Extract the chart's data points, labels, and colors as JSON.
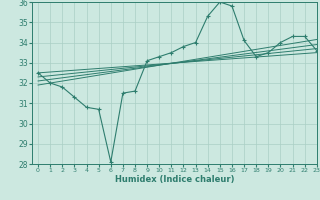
{
  "xlabel": "Humidex (Indice chaleur)",
  "x_data": [
    0,
    1,
    2,
    3,
    4,
    5,
    6,
    7,
    8,
    9,
    10,
    11,
    12,
    13,
    14,
    15,
    16,
    17,
    18,
    19,
    20,
    21,
    22,
    23
  ],
  "y_main": [
    32.5,
    32.0,
    31.8,
    31.3,
    30.8,
    30.7,
    28.1,
    31.5,
    31.6,
    33.1,
    33.3,
    33.5,
    33.8,
    34.0,
    35.3,
    36.0,
    35.8,
    34.1,
    33.3,
    33.5,
    34.0,
    34.3,
    34.3,
    33.6
  ],
  "trend_lines": [
    [
      [
        0,
        23
      ],
      [
        32.5,
        33.5
      ]
    ],
    [
      [
        0,
        23
      ],
      [
        32.3,
        33.7
      ]
    ],
    [
      [
        0,
        23
      ],
      [
        32.1,
        33.9
      ]
    ],
    [
      [
        0,
        23
      ],
      [
        31.9,
        34.15
      ]
    ]
  ],
  "line_color": "#2e7d6e",
  "bg_color": "#cce8e0",
  "grid_color": "#aacfc5",
  "ylim": [
    28,
    36
  ],
  "xlim": [
    -0.5,
    23
  ],
  "yticks": [
    28,
    29,
    30,
    31,
    32,
    33,
    34,
    35,
    36
  ],
  "xticks": [
    0,
    1,
    2,
    3,
    4,
    5,
    6,
    7,
    8,
    9,
    10,
    11,
    12,
    13,
    14,
    15,
    16,
    17,
    18,
    19,
    20,
    21,
    22,
    23
  ]
}
